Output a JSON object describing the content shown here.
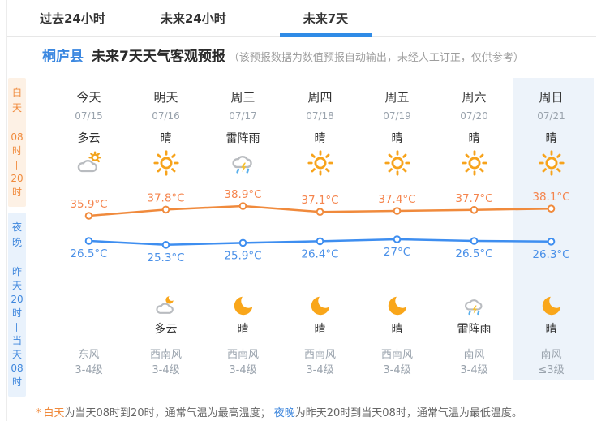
{
  "tabs": [
    {
      "label": "过去24小时",
      "active": false
    },
    {
      "label": "未来24小时",
      "active": false
    },
    {
      "label": "未来7天",
      "active": true
    }
  ],
  "header": {
    "county": "桐庐县",
    "title": "未来7天天气客观预报",
    "note": "（该预报数据为数值预报自动输出，未经人工订正，仅供参考）"
  },
  "sidebar": {
    "day": {
      "title": "白天",
      "range": [
        "08",
        "时",
        "—",
        "20",
        "时"
      ]
    },
    "night": {
      "title": "夜晚",
      "range": [
        "昨",
        "天",
        "20",
        "时",
        "—",
        "当",
        "天",
        "08",
        "时"
      ]
    }
  },
  "columns": [
    {
      "day": "今天",
      "date": "07/15",
      "day_weather": "多云",
      "day_icon": "cloudy-sun-icon",
      "night_weather": "",
      "night_icon": "",
      "wind_dir": "东风",
      "wind_level": "3-4级",
      "highlight": false
    },
    {
      "day": "明天",
      "date": "07/16",
      "day_weather": "晴",
      "day_icon": "sun-icon",
      "night_weather": "多云",
      "night_icon": "cloudy-moon-icon",
      "wind_dir": "西南风",
      "wind_level": "3-4级",
      "highlight": false
    },
    {
      "day": "周三",
      "date": "07/17",
      "day_weather": "雷阵雨",
      "day_icon": "thunderstorm-icon",
      "night_weather": "晴",
      "night_icon": "moon-icon",
      "wind_dir": "西南风",
      "wind_level": "3-4级",
      "highlight": false
    },
    {
      "day": "周四",
      "date": "07/18",
      "day_weather": "晴",
      "day_icon": "sun-icon",
      "night_weather": "晴",
      "night_icon": "moon-icon",
      "wind_dir": "西南风",
      "wind_level": "3-4级",
      "highlight": false
    },
    {
      "day": "周五",
      "date": "07/19",
      "day_weather": "晴",
      "day_icon": "sun-icon",
      "night_weather": "晴",
      "night_icon": "moon-icon",
      "wind_dir": "西南风",
      "wind_level": "3-4级",
      "highlight": false
    },
    {
      "day": "周六",
      "date": "07/20",
      "day_weather": "晴",
      "day_icon": "sun-icon",
      "night_weather": "雷阵雨",
      "night_icon": "thunderstorm-icon",
      "wind_dir": "南风",
      "wind_level": "3-4级",
      "highlight": false
    },
    {
      "day": "周日",
      "date": "07/21",
      "day_weather": "晴",
      "day_icon": "sun-icon",
      "night_weather": "晴",
      "night_icon": "moon-icon",
      "wind_dir": "南风",
      "wind_level": "≤3级",
      "highlight": true
    }
  ],
  "chart_data": {
    "type": "line",
    "categories": [
      "今天",
      "明天",
      "周三",
      "周四",
      "周五",
      "周六",
      "周日"
    ],
    "series": [
      {
        "name": "白天最高气温",
        "color": "#f08a3c",
        "label_color": "#f5854e",
        "values": [
          35.9,
          37.8,
          38.9,
          37.1,
          37.4,
          37.7,
          38.1
        ],
        "labels": [
          "35.9°C",
          "37.8°C",
          "38.9°C",
          "37.1°C",
          "37.4°C",
          "37.7°C",
          "38.1°C"
        ]
      },
      {
        "name": "夜晚最低气温",
        "color": "#3e8ef0",
        "label_color": "#4a90e8",
        "values": [
          26.5,
          25.3,
          25.9,
          26.4,
          27,
          26.5,
          26.3
        ],
        "labels": [
          "26.5°C",
          "25.3°C",
          "25.9°C",
          "26.4°C",
          "27°C",
          "26.5°C",
          "26.3°C"
        ]
      }
    ],
    "title": "",
    "xlabel": "",
    "ylabel": "",
    "ylim": [
      25,
      39
    ],
    "grid": false,
    "legend": false,
    "value_labels": true
  },
  "footer": {
    "asterisk": "*",
    "day_term": "白天",
    "day_text": "为当天08时到20时，通常气温为最高温度；",
    "night_term": "夜晚",
    "night_text": "为昨天20时到当天08时，通常气温为最低温度。"
  },
  "colors": {
    "accent_blue": "#2f8be6",
    "link_blue": "#3a87e0",
    "high_series": "#f08a3c",
    "low_series": "#3e8ef0",
    "highlight_bg": "#edf3fa",
    "day_band_bg": "#fdf1e5",
    "day_band_text": "#f08a3c",
    "night_band_bg": "#e9f2fc",
    "night_band_text": "#3f87dd"
  }
}
